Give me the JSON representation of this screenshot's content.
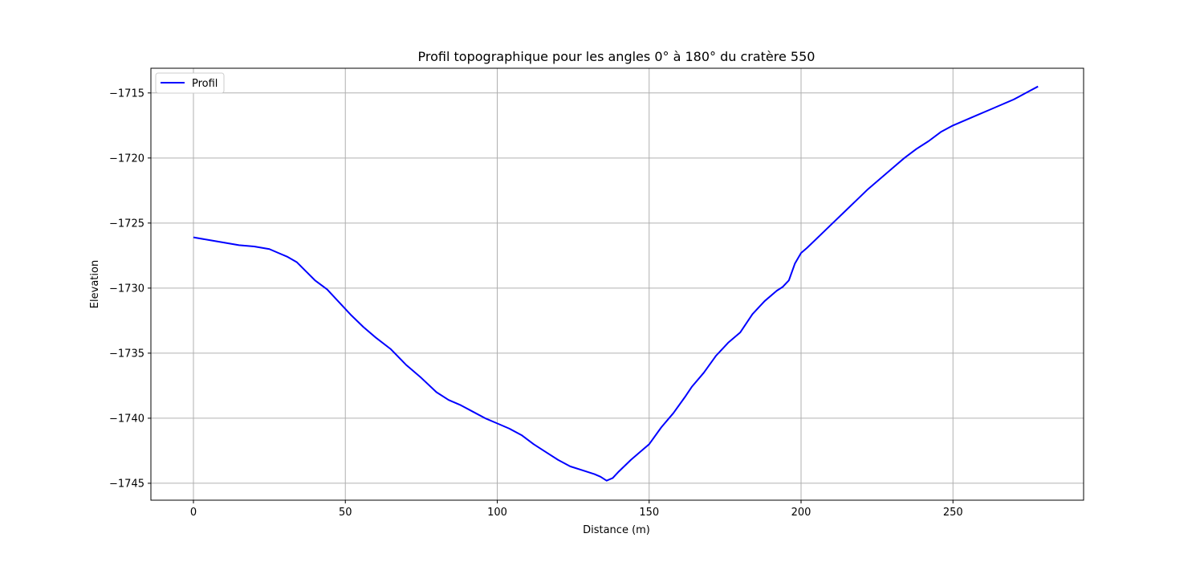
{
  "chart_data": {
    "type": "line",
    "title": "Profil topographique pour les angles 0° à 180° du cratère 550",
    "xlabel": "Distance (m)",
    "ylabel": "Elevation",
    "xlim": [
      -14,
      293
    ],
    "ylim": [
      -1746.3,
      -1713.1
    ],
    "xticks": [
      0,
      50,
      100,
      150,
      200,
      250
    ],
    "yticks": [
      -1715,
      -1720,
      -1725,
      -1730,
      -1735,
      -1740,
      -1745
    ],
    "grid": true,
    "legend_position": "top-left",
    "series": [
      {
        "name": "Profil",
        "color": "#0000ff",
        "x": [
          0,
          5,
          10,
          15,
          20,
          25,
          28,
          31,
          34,
          37,
          40,
          44,
          48,
          52,
          56,
          60,
          65,
          70,
          75,
          80,
          84,
          88,
          92,
          96,
          100,
          104,
          108,
          112,
          116,
          120,
          124,
          128,
          132,
          134,
          136,
          138,
          140,
          144,
          148,
          150,
          154,
          158,
          162,
          164,
          168,
          172,
          174,
          176,
          180,
          184,
          188,
          192,
          194,
          196,
          198,
          200,
          202,
          206,
          210,
          214,
          218,
          222,
          226,
          230,
          234,
          238,
          242,
          246,
          250,
          254,
          258,
          262,
          266,
          270,
          274,
          278
        ],
        "values": [
          -1726.1,
          -1726.3,
          -1726.5,
          -1726.7,
          -1726.8,
          -1727.0,
          -1727.3,
          -1727.6,
          -1728.0,
          -1728.7,
          -1729.4,
          -1730.1,
          -1731.1,
          -1732.1,
          -1733.0,
          -1733.8,
          -1734.7,
          -1735.9,
          -1736.9,
          -1738.0,
          -1738.6,
          -1739.0,
          -1739.5,
          -1740.0,
          -1740.4,
          -1740.8,
          -1741.3,
          -1742.0,
          -1742.6,
          -1743.2,
          -1743.7,
          -1744.0,
          -1744.3,
          -1744.5,
          -1744.8,
          -1744.6,
          -1744.1,
          -1743.2,
          -1742.4,
          -1742.0,
          -1740.7,
          -1739.6,
          -1738.3,
          -1737.6,
          -1736.5,
          -1735.2,
          -1734.7,
          -1734.2,
          -1733.4,
          -1732.0,
          -1731.0,
          -1730.2,
          -1729.9,
          -1729.4,
          -1728.1,
          -1727.3,
          -1726.9,
          -1726.0,
          -1725.1,
          -1724.2,
          -1723.3,
          -1722.4,
          -1721.6,
          -1720.8,
          -1720.0,
          -1719.3,
          -1718.7,
          -1718.0,
          -1717.5,
          -1717.1,
          -1716.7,
          -1716.3,
          -1715.9,
          -1715.5,
          -1715.0,
          -1714.5
        ]
      }
    ]
  }
}
